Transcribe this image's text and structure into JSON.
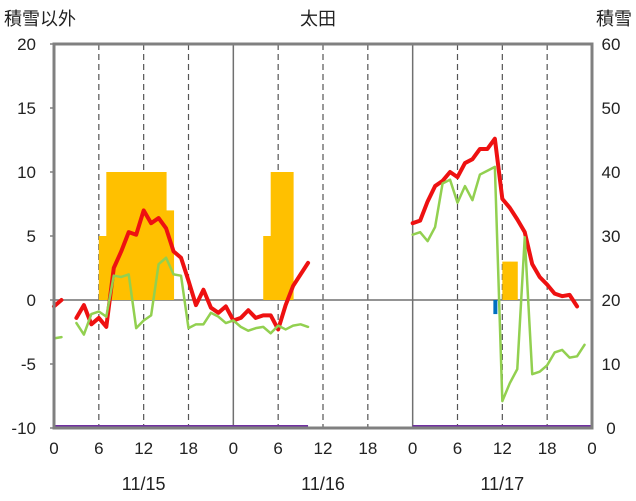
{
  "chart_data": {
    "type": "line",
    "title": "太田",
    "ylabel_left": "積雪以外",
    "ylabel_right": "積雪",
    "ylim_left": [
      -10,
      20
    ],
    "ylim_right": [
      0,
      60
    ],
    "yticks_left": [
      "20",
      "15",
      "10",
      "5",
      "0",
      "-5",
      "-10"
    ],
    "yticks_right": [
      "60",
      "50",
      "40",
      "30",
      "20",
      "10",
      "0"
    ],
    "x_range_hours": [
      0,
      72
    ],
    "xtick_labels": [
      "0",
      "6",
      "12",
      "18",
      "0",
      "6",
      "12",
      "18",
      "0",
      "6",
      "12",
      "18",
      "0"
    ],
    "date_labels": [
      "11/15",
      "11/16",
      "11/17"
    ],
    "grid": "dashed vertical at 6-hour marks, solid at day boundaries",
    "colors": {
      "temperature": "#ee1111",
      "dewpoint": "#92d050",
      "precip": "#ffc000",
      "snow": "#0070c0",
      "baseline": "#7030a0",
      "frame": "#808080"
    },
    "series": [
      {
        "key": "temperature",
        "axis": "left",
        "x": [
          0,
          1,
          null,
          3,
          4,
          5,
          6,
          7,
          8,
          9,
          10,
          11,
          12,
          13,
          14,
          15,
          16,
          17,
          18,
          19,
          20,
          21,
          22,
          23,
          24,
          25,
          26,
          27,
          28,
          29,
          30,
          31,
          32,
          33,
          34,
          null,
          48,
          49,
          50,
          51,
          52,
          53,
          54,
          55,
          56,
          57,
          58,
          59,
          60,
          61,
          62,
          63,
          64,
          65,
          66,
          67,
          68,
          69,
          70,
          71
        ],
        "y": [
          -0.5,
          0,
          null,
          -1.4,
          -0.4,
          -1.9,
          -1.4,
          -2.1,
          2.5,
          3.8,
          5.3,
          5.1,
          7.0,
          6.0,
          6.4,
          5.6,
          3.8,
          3.3,
          1.5,
          -0.4,
          0.8,
          -0.6,
          -1.0,
          -0.5,
          -1.6,
          -1.4,
          -0.8,
          -1.4,
          -1.2,
          -1.2,
          -2.3,
          -0.4,
          1.1,
          2.0,
          2.9,
          null,
          6.0,
          6.2,
          7.7,
          8.9,
          9.3,
          10.0,
          9.6,
          10.7,
          11.0,
          11.8,
          11.8,
          12.6,
          7.9,
          7.2,
          6.3,
          5.3,
          2.8,
          1.8,
          1.2,
          0.5,
          0.3,
          0.4,
          -0.5,
          null
        ]
      },
      {
        "key": "dewpoint",
        "axis": "left",
        "x": [
          0,
          1,
          null,
          3,
          4,
          5,
          6,
          7,
          8,
          9,
          10,
          11,
          12,
          13,
          14,
          15,
          16,
          17,
          18,
          19,
          20,
          21,
          22,
          23,
          24,
          25,
          26,
          27,
          28,
          29,
          30,
          31,
          32,
          33,
          34,
          null,
          48,
          49,
          50,
          51,
          52,
          53,
          54,
          55,
          56,
          57,
          58,
          59,
          60,
          61,
          62,
          63,
          64,
          65,
          66,
          67,
          68,
          69,
          70,
          71
        ],
        "y": [
          -3,
          -2.9,
          null,
          -1.8,
          -2.7,
          -1.1,
          -0.9,
          -1.3,
          1.9,
          1.8,
          2.0,
          -2.2,
          -1.6,
          -1.2,
          2.8,
          3.3,
          2.0,
          1.9,
          -2.2,
          -1.9,
          -1.9,
          -1.0,
          -1.3,
          -1.8,
          -1.6,
          -2.1,
          -2.4,
          -2.2,
          -2.1,
          -2.6,
          -2.0,
          -2.3,
          -2.0,
          -1.9,
          -2.1,
          null,
          5.1,
          5.3,
          4.6,
          5.7,
          9.1,
          9.4,
          7.6,
          8.9,
          7.8,
          9.8,
          10.1,
          10.4,
          -7.9,
          -6.5,
          -5.4,
          4.9,
          -5.8,
          -5.6,
          -5.1,
          -4.1,
          -3.9,
          -4.5,
          -4.4,
          -3.5
        ]
      }
    ],
    "bars": [
      {
        "key": "precip",
        "axis": "left",
        "x": [
          6,
          7,
          8,
          9,
          10,
          11,
          12,
          13,
          14,
          15,
          28,
          29,
          30,
          31,
          60,
          61
        ],
        "y": [
          5,
          10,
          10,
          10,
          10,
          10,
          10,
          10,
          10,
          7,
          5,
          10,
          10,
          10,
          3,
          3
        ]
      },
      {
        "key": "snow",
        "axis": "left",
        "x": [
          59
        ],
        "y": [
          -1.1
        ]
      }
    ],
    "baseline_value": -10
  }
}
